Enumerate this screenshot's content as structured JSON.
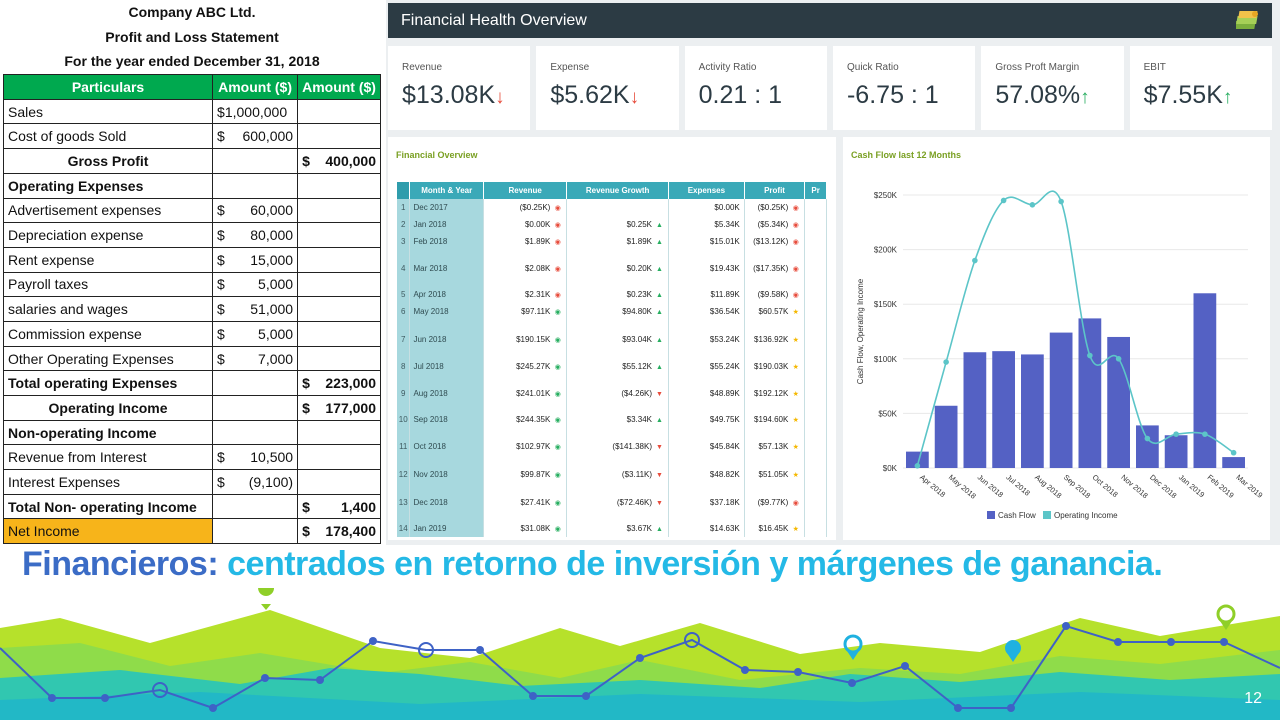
{
  "statement": {
    "company": "Company ABC Ltd.",
    "title": "Profit and Loss Statement",
    "period": "For the year ended December 31, 2018",
    "headers": [
      "Particulars",
      "Amount ($)",
      "Amount ($)"
    ],
    "rows": [
      {
        "label": "Sales",
        "c1": "$1,000,000",
        "c2": "",
        "style": "plain",
        "kind": "full"
      },
      {
        "label": "Cost of goods Sold",
        "c1s": "$",
        "c1": "600,000",
        "c2": "",
        "style": "plain"
      },
      {
        "label": "Gross Profit",
        "c1": "",
        "c2s": "$",
        "c2": "400,000",
        "style": "bold-center"
      },
      {
        "label": "Operating Expenses",
        "c1": "",
        "c2": "",
        "style": "bold"
      },
      {
        "label": "Advertisement expenses",
        "c1s": "$",
        "c1": "60,000",
        "c2": "",
        "style": "plain"
      },
      {
        "label": "Depreciation expense",
        "c1s": "$",
        "c1": "80,000",
        "c2": "",
        "style": "plain"
      },
      {
        "label": "Rent expense",
        "c1s": "$",
        "c1": "15,000",
        "c2": "",
        "style": "plain"
      },
      {
        "label": "Payroll taxes",
        "c1s": "$",
        "c1": "5,000",
        "c2": "",
        "style": "plain"
      },
      {
        "label": "salaries and wages",
        "c1s": "$",
        "c1": "51,000",
        "c2": "",
        "style": "plain"
      },
      {
        "label": "Commission expense",
        "c1s": "$",
        "c1": "5,000",
        "c2": "",
        "style": "plain"
      },
      {
        "label": "Other Operating Expenses",
        "c1s": "$",
        "c1": "7,000",
        "c2": "",
        "style": "plain"
      },
      {
        "label": "Total operating Expenses",
        "c1": "",
        "c2s": "$",
        "c2": "223,000",
        "style": "bold"
      },
      {
        "label": "Operating Income",
        "c1": "",
        "c2s": "$",
        "c2": "177,000",
        "style": "bold-center"
      },
      {
        "label": "Non-operating Income",
        "c1": "",
        "c2": "",
        "style": "bold"
      },
      {
        "label": "Revenue from Interest",
        "c1s": "$",
        "c1": "10,500",
        "c2": "",
        "style": "indent"
      },
      {
        "label": "Interest Expenses",
        "c1s": "$",
        "c1": "(9,100)",
        "c2": "",
        "style": "indent"
      },
      {
        "label": "Total Non- operating Income",
        "c1": "",
        "c2s": "$",
        "c2": "1,400",
        "style": "bold"
      },
      {
        "label": "Net Income",
        "c1": "",
        "c2s": "$",
        "c2": "178,400",
        "style": "net"
      }
    ]
  },
  "dashboard": {
    "title": "Financial Health Overview",
    "logo_icon": "money-stack-icon",
    "kpis": [
      {
        "label": "Revenue",
        "value": "$13.08K",
        "trend": "down"
      },
      {
        "label": "Expense",
        "value": "$5.62K",
        "trend": "down"
      },
      {
        "label": "Activity Ratio",
        "value": "0.21 : 1",
        "trend": ""
      },
      {
        "label": "Quick Ratio",
        "value": "-6.75 : 1",
        "trend": ""
      },
      {
        "label": "Gross Proft Margin",
        "value": "57.08%",
        "trend": "up"
      },
      {
        "label": "EBIT",
        "value": "$7.55K",
        "trend": "up"
      }
    ],
    "overview": {
      "title": "Financial Overview",
      "headers": [
        "Month & Year",
        "Revenue",
        "Revenue Growth",
        "Expenses",
        "Profit",
        "Pr"
      ],
      "rows": [
        {
          "i": "1",
          "month": "Dec 2017",
          "rev": "($0.25K)",
          "ri": "red",
          "growth": "",
          "gi": "",
          "exp": "$0.00K",
          "profit": "($0.25K)",
          "pi": "red"
        },
        {
          "i": "2",
          "month": "Jan 2018",
          "rev": "$0.00K",
          "ri": "red",
          "growth": "$0.25K",
          "gi": "up",
          "exp": "$5.34K",
          "profit": "($5.34K)",
          "pi": "red"
        },
        {
          "i": "3",
          "month": "Feb 2018",
          "rev": "$1.89K",
          "ri": "red",
          "growth": "$1.89K",
          "gi": "up",
          "exp": "$15.01K",
          "profit": "($13.12K)",
          "pi": "red"
        },
        {
          "i": "4",
          "month": "Mar 2018",
          "rev": "$2.08K",
          "ri": "red",
          "growth": "$0.20K",
          "gi": "up",
          "exp": "$19.43K",
          "profit": "($17.35K)",
          "pi": "red"
        },
        {
          "i": "5",
          "month": "Apr 2018",
          "rev": "$2.31K",
          "ri": "red",
          "growth": "$0.23K",
          "gi": "up",
          "exp": "$11.89K",
          "profit": "($9.58K)",
          "pi": "red"
        },
        {
          "i": "6",
          "month": "May 2018",
          "rev": "$97.11K",
          "ri": "grn",
          "growth": "$94.80K",
          "gi": "up",
          "exp": "$36.54K",
          "profit": "$60.57K",
          "pi": "yel"
        },
        {
          "i": "7",
          "month": "Jun 2018",
          "rev": "$190.15K",
          "ri": "grn",
          "growth": "$93.04K",
          "gi": "up",
          "exp": "$53.24K",
          "profit": "$136.92K",
          "pi": "yel"
        },
        {
          "i": "8",
          "month": "Jul 2018",
          "rev": "$245.27K",
          "ri": "grn",
          "growth": "$55.12K",
          "gi": "up",
          "exp": "$55.24K",
          "profit": "$190.03K",
          "pi": "yel"
        },
        {
          "i": "9",
          "month": "Aug 2018",
          "rev": "$241.01K",
          "ri": "grn",
          "growth": "($4.26K)",
          "gi": "down",
          "exp": "$48.89K",
          "profit": "$192.12K",
          "pi": "yel"
        },
        {
          "i": "10",
          "month": "Sep 2018",
          "rev": "$244.35K",
          "ri": "grn",
          "growth": "$3.34K",
          "gi": "up",
          "exp": "$49.75K",
          "profit": "$194.60K",
          "pi": "yel"
        },
        {
          "i": "11",
          "month": "Oct 2018",
          "rev": "$102.97K",
          "ri": "grn",
          "growth": "($141.38K)",
          "gi": "down",
          "exp": "$45.84K",
          "profit": "$57.13K",
          "pi": "yel"
        },
        {
          "i": "12",
          "month": "Nov 2018",
          "rev": "$99.87K",
          "ri": "grn",
          "growth": "($3.11K)",
          "gi": "down",
          "exp": "$48.82K",
          "profit": "$51.05K",
          "pi": "yel"
        },
        {
          "i": "13",
          "month": "Dec 2018",
          "rev": "$27.41K",
          "ri": "grn",
          "growth": "($72.46K)",
          "gi": "down",
          "exp": "$37.18K",
          "profit": "($9.77K)",
          "pi": "red"
        },
        {
          "i": "14",
          "month": "Jan 2019",
          "rev": "$31.08K",
          "ri": "grn",
          "growth": "$3.67K",
          "gi": "up",
          "exp": "$14.63K",
          "profit": "$16.45K",
          "pi": "yel"
        }
      ]
    }
  },
  "chart_data": {
    "type": "bar",
    "title": "Cash Flow last 12 Months",
    "xlabel": "",
    "ylabel": "Cash Flow, Operating Income",
    "categories": [
      "Apr 2018",
      "May 2018",
      "Jun 2018",
      "Jul 2018",
      "Aug 2018",
      "Sep 2018",
      "Oct 2018",
      "Nov 2018",
      "Dec 2018",
      "Jan 2019",
      "Feb 2019",
      "Mar 2019"
    ],
    "y_ticks": [
      "$0K",
      "$50K",
      "$100K",
      "$150K",
      "$200K",
      "$250K"
    ],
    "ylim": [
      0,
      250
    ],
    "grid": true,
    "legend": "bottom",
    "series": [
      {
        "name": "Cash Flow",
        "type": "bar",
        "color": "#5461c4",
        "values": [
          15,
          57,
          106,
          107,
          104,
          124,
          137,
          120,
          39,
          30,
          160,
          10
        ]
      },
      {
        "name": "Operating Income",
        "type": "line",
        "color": "#5cc5c8",
        "values": [
          2,
          97,
          190,
          245,
          241,
          244,
          103,
          100,
          27,
          31,
          31,
          14
        ]
      }
    ]
  },
  "caption": {
    "part1": "Financieros:",
    "part2": "centrados en retorno de inversión y márgenes de ganancia."
  },
  "page_number": "12",
  "colors": {
    "accent_green": "#00a94f",
    "net_income": "#f7b41a",
    "caption_blue": "#3b6cc6",
    "caption_cyan": "#24b9e6"
  }
}
